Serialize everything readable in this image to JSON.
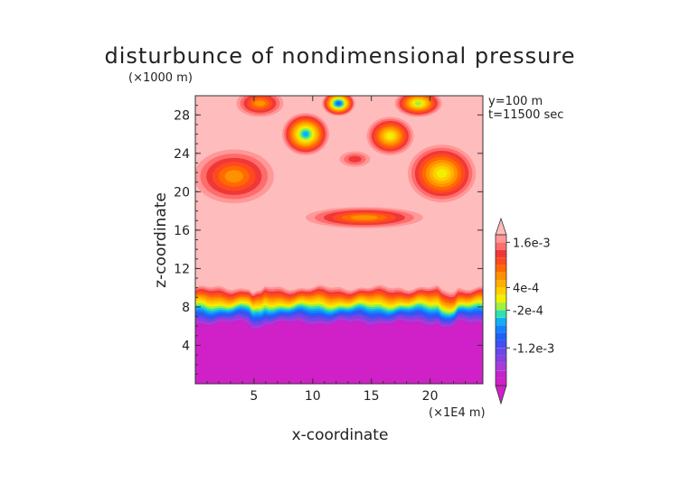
{
  "chart_data": {
    "type": "heatmap",
    "title": "disturbunce of nondimensional pressure",
    "z_unit": "(×1000 m)",
    "x_unit": "(×1E4 m)",
    "xlabel": "x-coordinate",
    "ylabel": "z-coordinate",
    "info": [
      "y=100 m",
      "t=11500 sec"
    ],
    "xlim": [
      0,
      24.5
    ],
    "ylim": [
      0,
      30
    ],
    "x_ticks": [
      5,
      10,
      15,
      20
    ],
    "y_ticks": [
      4,
      8,
      12,
      16,
      20,
      24,
      28
    ],
    "colorbar": {
      "labels": [
        "1.6e-3",
        "4e-4",
        "-2e-4",
        "-1.2e-3"
      ],
      "label_values": [
        0.0016,
        0.0004,
        -0.0002,
        -0.0012
      ],
      "levels": [
        -0.0022,
        -0.002,
        -0.0018,
        -0.0016,
        -0.0014,
        -0.0012,
        -0.001,
        -0.0008,
        -0.0006,
        -0.0004,
        -0.0002,
        0,
        0.0002,
        0.0004,
        0.0006,
        0.0008,
        0.001,
        0.0012,
        0.0014,
        0.0016,
        0.0018
      ],
      "colors": [
        "#d020c8",
        "#c424cc",
        "#a83cd8",
        "#8a40e0",
        "#6a48e8",
        "#4050f0",
        "#2060f8",
        "#1880ff",
        "#10b0f0",
        "#30e0b0",
        "#a0f040",
        "#f0f000",
        "#ffd000",
        "#ffb000",
        "#ff9000",
        "#ff6a00",
        "#ff4a20",
        "#f03838",
        "#ff6c6c",
        "#ff9898",
        "#ffbcbc"
      ]
    },
    "background_level": "#ffbcbc",
    "regions": [
      {
        "name": "blob-upper-left",
        "x": 3.3,
        "z": 21.6,
        "rx": 3.4,
        "rz": 2.8,
        "peak": "#ff9000"
      },
      {
        "name": "blob-upper-right",
        "x": 21.0,
        "z": 21.9,
        "rx": 2.9,
        "rz": 3.0,
        "peak": "#f0f000"
      },
      {
        "name": "blob-center-band",
        "x": 14.4,
        "z": 17.3,
        "rx": 5.0,
        "rz": 1.1,
        "peak": "#ff9000"
      },
      {
        "name": "blob-top-center",
        "x": 12.2,
        "z": 29.2,
        "rx": 1.4,
        "rz": 1.3,
        "peak": "#2060f8"
      },
      {
        "name": "blob-mid-cell",
        "x": 9.4,
        "z": 26.0,
        "rx": 2.0,
        "rz": 2.2,
        "peak": "#10b0f0"
      },
      {
        "name": "blob-right-cell",
        "x": 16.6,
        "z": 25.8,
        "rx": 2.0,
        "rz": 2.0,
        "peak": "#f0f000"
      },
      {
        "name": "blob-top-left",
        "x": 5.5,
        "z": 29.2,
        "rx": 2.0,
        "rz": 1.4,
        "peak": "#ff9000"
      },
      {
        "name": "blob-top-right",
        "x": 19.0,
        "z": 29.2,
        "rx": 2.0,
        "rz": 1.4,
        "peak": "#a0f040"
      },
      {
        "name": "blob-center-top",
        "x": 13.6,
        "z": 23.4,
        "rx": 1.3,
        "rz": 0.8,
        "peak": "#f03838"
      }
    ],
    "boundary_layer": {
      "top_z": 10.0,
      "base_z": 6.0
    }
  }
}
